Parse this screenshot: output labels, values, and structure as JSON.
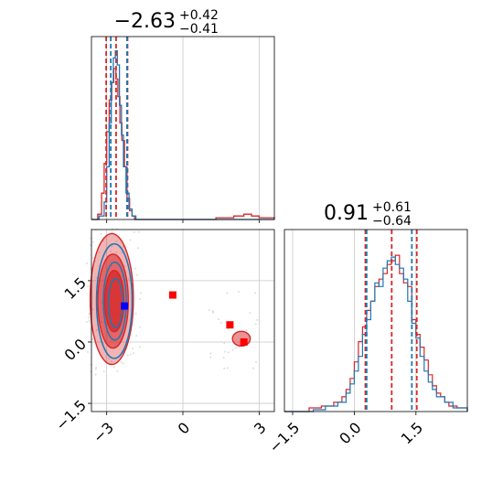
{
  "chart_data": [
    {
      "type": "histogram",
      "panel": "marginal-x1",
      "title": {
        "main": "−2.63",
        "sup": "+0.42",
        "sub": "−0.41"
      },
      "xlim": [
        -3.6,
        3.6
      ],
      "grid": true,
      "colors": {
        "red": "#d62728",
        "blue": "#1f77b4"
      },
      "quantile_lines": {
        "red": [
          -3.02,
          -2.63,
          -2.18
        ],
        "blue": [
          -2.84,
          -2.2
        ]
      },
      "series": [
        {
          "color": "red",
          "bins": [
            [
              -3.6,
              0
            ],
            [
              -3.35,
              0.03
            ],
            [
              -3.2,
              0.15
            ],
            [
              -3.1,
              0.32
            ],
            [
              -3.0,
              0.5
            ],
            [
              -2.9,
              0.68
            ],
            [
              -2.8,
              0.78
            ],
            [
              -2.72,
              0.86
            ],
            [
              -2.64,
              0.8
            ],
            [
              -2.56,
              0.7
            ],
            [
              -2.48,
              0.55
            ],
            [
              -2.4,
              0.45
            ],
            [
              -2.3,
              0.3
            ],
            [
              -2.2,
              0.12
            ],
            [
              -2.1,
              0.05
            ],
            [
              -2.0,
              0.02
            ],
            [
              -1.9,
              0
            ],
            [
              1.3,
              0.01
            ],
            [
              2.0,
              0.02
            ],
            [
              2.4,
              0.03
            ],
            [
              2.7,
              0.02
            ],
            [
              3.0,
              0.01
            ],
            [
              3.6,
              0
            ]
          ]
        },
        {
          "color": "blue",
          "bins": [
            [
              -3.6,
              0
            ],
            [
              -3.3,
              0.02
            ],
            [
              -3.1,
              0.1
            ],
            [
              -3.0,
              0.3
            ],
            [
              -2.9,
              0.55
            ],
            [
              -2.82,
              0.78
            ],
            [
              -2.74,
              0.92
            ],
            [
              -2.66,
              0.96
            ],
            [
              -2.58,
              0.88
            ],
            [
              -2.5,
              0.65
            ],
            [
              -2.42,
              0.48
            ],
            [
              -2.34,
              0.3
            ],
            [
              -2.24,
              0.15
            ],
            [
              -2.12,
              0.06
            ],
            [
              -2.0,
              0.02
            ],
            [
              -1.85,
              0
            ],
            [
              3.6,
              0
            ]
          ]
        }
      ]
    },
    {
      "type": "histogram",
      "panel": "marginal-x2",
      "title": {
        "main": "0.91",
        "sup": "+0.61",
        "sub": "−0.64"
      },
      "xlim": [
        -1.7,
        2.75
      ],
      "xticks": [
        "−1.5",
        "0.0",
        "1.5"
      ],
      "xtick_values": [
        -1.5,
        0,
        1.5
      ],
      "grid": true,
      "quantile_lines": {
        "red": [
          0.27,
          0.91,
          1.52
        ],
        "blue": [
          0.3,
          1.4
        ]
      },
      "series": [
        {
          "color": "red",
          "bins": [
            [
              -1.7,
              0
            ],
            [
              -1.1,
              0.02
            ],
            [
              -0.8,
              0.03
            ],
            [
              -0.5,
              0.05
            ],
            [
              -0.3,
              0.08
            ],
            [
              -0.2,
              0.12
            ],
            [
              -0.1,
              0.18
            ],
            [
              0.0,
              0.27
            ],
            [
              0.1,
              0.38
            ],
            [
              0.2,
              0.46
            ],
            [
              0.3,
              0.55
            ],
            [
              0.4,
              0.6
            ],
            [
              0.5,
              0.68
            ],
            [
              0.6,
              0.72
            ],
            [
              0.7,
              0.75
            ],
            [
              0.8,
              0.8
            ],
            [
              0.9,
              0.82
            ],
            [
              1.0,
              0.85
            ],
            [
              1.1,
              0.75
            ],
            [
              1.2,
              0.7
            ],
            [
              1.3,
              0.68
            ],
            [
              1.4,
              0.5
            ],
            [
              1.5,
              0.42
            ],
            [
              1.6,
              0.35
            ],
            [
              1.7,
              0.28
            ],
            [
              1.8,
              0.2
            ],
            [
              1.9,
              0.14
            ],
            [
              2.0,
              0.1
            ],
            [
              2.1,
              0.08
            ],
            [
              2.2,
              0.05
            ],
            [
              2.3,
              0.03
            ],
            [
              2.5,
              0.02
            ],
            [
              2.75,
              0
            ]
          ]
        },
        {
          "color": "blue",
          "bins": [
            [
              -1.7,
              0
            ],
            [
              -1.0,
              0.01
            ],
            [
              -0.7,
              0.03
            ],
            [
              -0.4,
              0.05
            ],
            [
              -0.2,
              0.1
            ],
            [
              -0.1,
              0.15
            ],
            [
              0.0,
              0.22
            ],
            [
              0.1,
              0.3
            ],
            [
              0.2,
              0.42
            ],
            [
              0.3,
              0.5
            ],
            [
              0.4,
              0.6
            ],
            [
              0.5,
              0.7
            ],
            [
              0.6,
              0.68
            ],
            [
              0.7,
              0.78
            ],
            [
              0.8,
              0.82
            ],
            [
              0.9,
              0.84
            ],
            [
              1.0,
              0.8
            ],
            [
              1.1,
              0.78
            ],
            [
              1.2,
              0.72
            ],
            [
              1.3,
              0.6
            ],
            [
              1.4,
              0.48
            ],
            [
              1.5,
              0.4
            ],
            [
              1.6,
              0.3
            ],
            [
              1.7,
              0.22
            ],
            [
              1.8,
              0.16
            ],
            [
              1.9,
              0.12
            ],
            [
              2.0,
              0.08
            ],
            [
              2.2,
              0.05
            ],
            [
              2.4,
              0.02
            ],
            [
              2.75,
              0
            ]
          ]
        }
      ]
    },
    {
      "type": "scatter",
      "panel": "joint",
      "xlim": [
        -3.6,
        3.6
      ],
      "ylim": [
        -1.7,
        2.75
      ],
      "xticks": [
        "−3",
        "0",
        "3"
      ],
      "xtick_values": [
        -3,
        0,
        3
      ],
      "yticks": [
        "−1.5",
        "0.0",
        "1.5"
      ],
      "ytick_values": [
        -1.5,
        0,
        1.5
      ],
      "grid": true,
      "contours_red": [
        {
          "cx": -2.8,
          "cy": 1.05,
          "rx": 0.85,
          "ry": 1.6,
          "opacity": 0.35
        },
        {
          "cx": -2.75,
          "cy": 1.0,
          "rx": 0.6,
          "ry": 1.15,
          "opacity": 0.55
        },
        {
          "cx": -2.7,
          "cy": 1.0,
          "rx": 0.38,
          "ry": 0.75,
          "opacity": 0.75
        },
        {
          "cx": 2.3,
          "cy": 0.08,
          "rx": 0.35,
          "ry": 0.18,
          "opacity": 0.5
        }
      ],
      "contours_blue": [
        {
          "cx": -2.7,
          "cy": 1.0,
          "rx": 0.7,
          "ry": 1.4
        },
        {
          "cx": -2.68,
          "cy": 1.0,
          "rx": 0.45,
          "ry": 0.95
        },
        {
          "cx": -2.65,
          "cy": 0.95,
          "rx": 0.28,
          "ry": 0.6
        }
      ],
      "markers": [
        {
          "x": -2.3,
          "y": 0.88,
          "color": "blue"
        },
        {
          "x": -0.4,
          "y": 1.15,
          "color": "red"
        },
        {
          "x": 1.85,
          "y": 0.42,
          "color": "red"
        },
        {
          "x": 2.4,
          "y": 0.0,
          "color": "red"
        }
      ]
    }
  ]
}
